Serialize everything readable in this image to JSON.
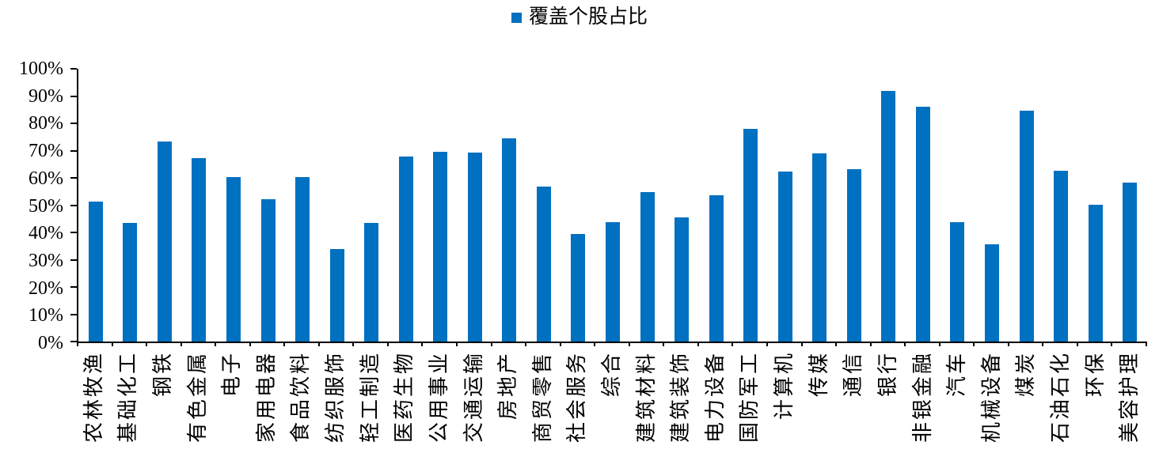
{
  "legend": {
    "label": "覆盖个股占比",
    "marker_color": "#0070C0"
  },
  "chart_data": {
    "type": "bar",
    "title": "",
    "series_name": "覆盖个股占比",
    "unit": "%",
    "categories": [
      "农林牧渔",
      "基础化工",
      "钢铁",
      "有色金属",
      "电子",
      "家用电器",
      "食品饮料",
      "纺织服饰",
      "轻工制造",
      "医药生物",
      "公用事业",
      "交通运输",
      "房地产",
      "商贸零售",
      "社会服务",
      "综合",
      "建筑材料",
      "建筑装饰",
      "电力设备",
      "国防军工",
      "计算机",
      "传媒",
      "通信",
      "银行",
      "非银金融",
      "汽车",
      "机械设备",
      "煤炭",
      "石油石化",
      "环保",
      "美容护理"
    ],
    "values": [
      51.3,
      43.5,
      73.4,
      67.3,
      60.3,
      52.3,
      60.2,
      33.8,
      43.6,
      67.9,
      69.7,
      69.4,
      74.4,
      56.7,
      39.5,
      43.9,
      54.7,
      45.6,
      53.5,
      78.1,
      62.2,
      69.1,
      63.2,
      91.8,
      86.2,
      43.9,
      35.7,
      84.7,
      62.6,
      50.2,
      58.4
    ],
    "ylim": [
      0,
      100
    ],
    "yticks": [
      "0%",
      "10%",
      "20%",
      "30%",
      "40%",
      "50%",
      "60%",
      "70%",
      "80%",
      "90%",
      "100%"
    ],
    "bar_color": "#0070C0",
    "axis_color": "#000000",
    "grid": false,
    "legend_position": "top-center",
    "x_label_rotation": -90
  }
}
